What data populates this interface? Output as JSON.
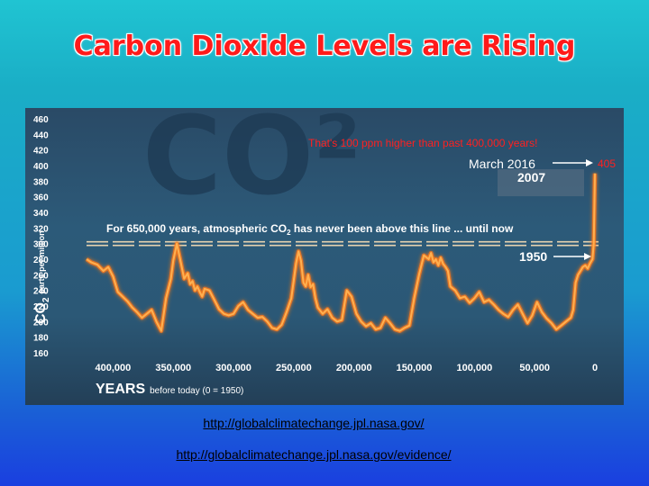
{
  "slide": {
    "title": "Carbon Dioxide Levels are Rising",
    "links": [
      "http://globalclimatechange.jpl.nasa.gov/",
      "http://globalclimatechange.jpl.nasa.gov/evidence/"
    ]
  },
  "colors": {
    "title": "#ff1a1a",
    "curve": "#ffb050",
    "annotation_red": "#ff2020",
    "panel_bg": "#2b5876"
  },
  "annotations": {
    "that_text": "That's 100 ppm higher than past 400,000 years!",
    "march_label": "March 2016",
    "march_value": "405",
    "y2007_label": "2007",
    "y1950_label": "1950",
    "threshold_note_pre": "For 650,000 years, atmospheric CO",
    "threshold_note_sub": "2",
    "threshold_note_post": " has never been above this line ... until now"
  },
  "chart_data": {
    "type": "line",
    "background_text": "CO²",
    "title": "",
    "xlabel": "YEARS",
    "xlabel_note": "before today (0 = 1950)",
    "ylabel_main": "CO",
    "ylabel_sub": "2",
    "ylabel_rest": "parts per million",
    "x_ticks": [
      "400,000",
      "350,000",
      "300,000",
      "250,000",
      "200,000",
      "150,000",
      "100,000",
      "50,000",
      "0"
    ],
    "x_tick_values": [
      400000,
      350000,
      300000,
      250000,
      200000,
      150000,
      100000,
      50000,
      0
    ],
    "y_ticks": [
      460,
      440,
      420,
      400,
      380,
      360,
      340,
      320,
      300,
      280,
      260,
      240,
      220,
      200,
      180,
      160
    ],
    "xlim": [
      422000,
      0
    ],
    "ylim": [
      150,
      465
    ],
    "threshold": 300,
    "series": [
      {
        "x": [
          422000,
          418000,
          413000,
          408000,
          404000,
          400000,
          396000,
          392000,
          388000,
          384000,
          380000,
          376000,
          372000,
          368000,
          364000,
          360000,
          356000,
          352000,
          350000,
          347000,
          344000,
          341000,
          338000,
          336000,
          334000,
          332000,
          330000,
          328000,
          326000,
          324000,
          320000,
          316000,
          312000,
          308000,
          304000,
          300000,
          296000,
          292000,
          288000,
          284000,
          280000,
          276000,
          272000,
          268000,
          264000,
          260000,
          256000,
          252000,
          248000,
          246000,
          244000,
          242000,
          240000,
          238000,
          236000,
          234000,
          232000,
          230000,
          226000,
          222000,
          218000,
          214000,
          210000,
          206000,
          202000,
          198000,
          194000,
          190000,
          186000,
          182000,
          178000,
          174000,
          170000,
          166000,
          162000,
          158000,
          154000,
          150000,
          146000,
          142000,
          138000,
          136000,
          134000,
          132000,
          130000,
          128000,
          126000,
          124000,
          122000,
          120000,
          116000,
          112000,
          108000,
          104000,
          100000,
          96000,
          92000,
          88000,
          84000,
          80000,
          76000,
          72000,
          68000,
          64000,
          60000,
          56000,
          52000,
          48000,
          44000,
          40000,
          36000,
          32000,
          28000,
          24000,
          20000,
          18000,
          16000,
          14000,
          12000,
          10000,
          8000,
          6000,
          4000,
          2000,
          1000,
          500,
          0
        ],
        "y": [
          280,
          276,
          273,
          265,
          270,
          258,
          238,
          232,
          226,
          218,
          212,
          205,
          210,
          215,
          200,
          188,
          230,
          255,
          278,
          300,
          278,
          255,
          262,
          248,
          252,
          240,
          245,
          238,
          232,
          242,
          240,
          228,
          216,
          210,
          208,
          210,
          220,
          225,
          215,
          210,
          205,
          206,
          200,
          192,
          190,
          196,
          212,
          230,
          275,
          290,
          278,
          250,
          245,
          260,
          244,
          248,
          230,
          218,
          210,
          216,
          205,
          200,
          202,
          240,
          232,
          210,
          200,
          194,
          198,
          190,
          192,
          205,
          198,
          190,
          188,
          192,
          195,
          230,
          260,
          285,
          280,
          288,
          276,
          280,
          272,
          282,
          274,
          270,
          265,
          245,
          240,
          230,
          232,
          224,
          230,
          238,
          225,
          228,
          222,
          215,
          210,
          206,
          215,
          222,
          210,
          198,
          208,
          225,
          212,
          204,
          198,
          190,
          195,
          200,
          205,
          215,
          250,
          260,
          265,
          270,
          272,
          268,
          275,
          280,
          300,
          340,
          390
        ]
      }
    ],
    "grid": false,
    "legend": "none"
  }
}
